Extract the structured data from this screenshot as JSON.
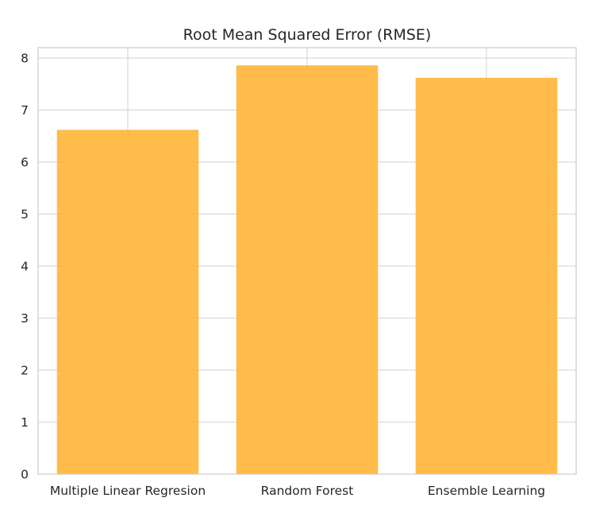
{
  "chart_data": {
    "type": "bar",
    "title": "Root Mean Squared Error (RMSE)",
    "xlabel": "",
    "ylabel": "",
    "categories": [
      "Multiple Linear Regresion",
      "Random Forest",
      "Ensemble Learning"
    ],
    "values": [
      6.62,
      7.86,
      7.62
    ],
    "ylim": [
      0,
      8.2
    ],
    "yticks": [
      0,
      1,
      2,
      3,
      4,
      5,
      6,
      7,
      8
    ],
    "ytick_labels": [
      "0",
      "1",
      "2",
      "3",
      "4",
      "5",
      "6",
      "7",
      "8"
    ],
    "grid": true,
    "bar_color": "#ffb536",
    "bar_opacity": 0.9
  }
}
